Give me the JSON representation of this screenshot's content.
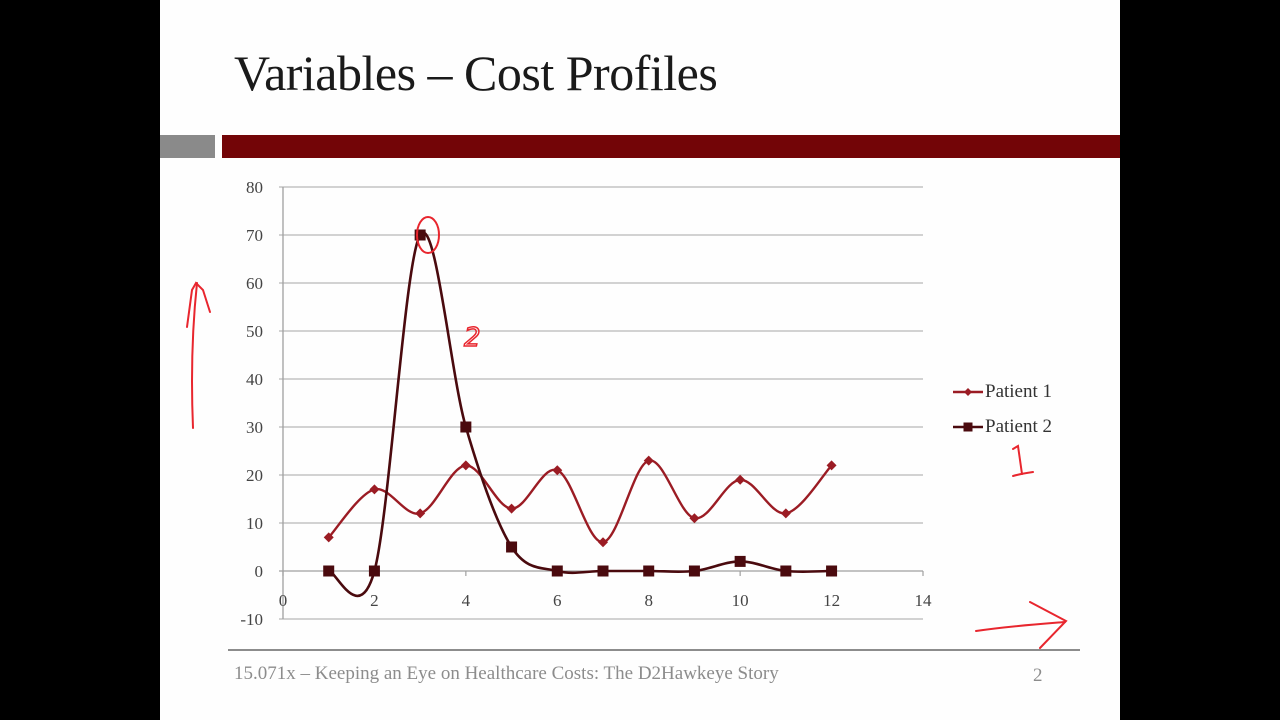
{
  "slide": {
    "title": "Variables – Cost Profiles",
    "footer": "15.071x – Keeping an Eye on Healthcare Costs: The D2Hawkeye Story",
    "page_number": "2",
    "colors": {
      "accent_bar": "#730507",
      "grey_bar": "#8a8a8a",
      "patient1": "#9b1c24",
      "patient2": "#4a0a0e",
      "annotation": "#e8262e"
    }
  },
  "legend": {
    "items": [
      {
        "label": "Patient 1",
        "marker": "diamond"
      },
      {
        "label": "Patient 2",
        "marker": "square"
      }
    ]
  },
  "annotations": {
    "label_2": "2",
    "label_1": "1",
    "notes": [
      "circle around Patient 2 peak at x=3",
      "up arrow beside y-axis",
      "right arrow beside x-axis"
    ]
  },
  "chart_data": {
    "type": "scatter",
    "title": "",
    "xlabel": "",
    "ylabel": "",
    "xlim": [
      0,
      14
    ],
    "ylim": [
      -10,
      80
    ],
    "x_ticks": [
      0,
      2,
      4,
      6,
      8,
      10,
      12,
      14
    ],
    "y_ticks": [
      -10,
      0,
      10,
      20,
      30,
      40,
      50,
      60,
      70,
      80
    ],
    "grid": "horizontal",
    "legend_position": "right",
    "smoothed_lines": true,
    "x": [
      1,
      2,
      3,
      4,
      5,
      6,
      7,
      8,
      9,
      10,
      11,
      12
    ],
    "series": [
      {
        "name": "Patient 1",
        "values": [
          7,
          17,
          12,
          22,
          13,
          21,
          6,
          23,
          11,
          19,
          12,
          22
        ]
      },
      {
        "name": "Patient 2",
        "values": [
          0,
          0,
          70,
          30,
          5,
          0,
          0,
          0,
          0,
          2,
          0,
          0
        ]
      }
    ]
  }
}
